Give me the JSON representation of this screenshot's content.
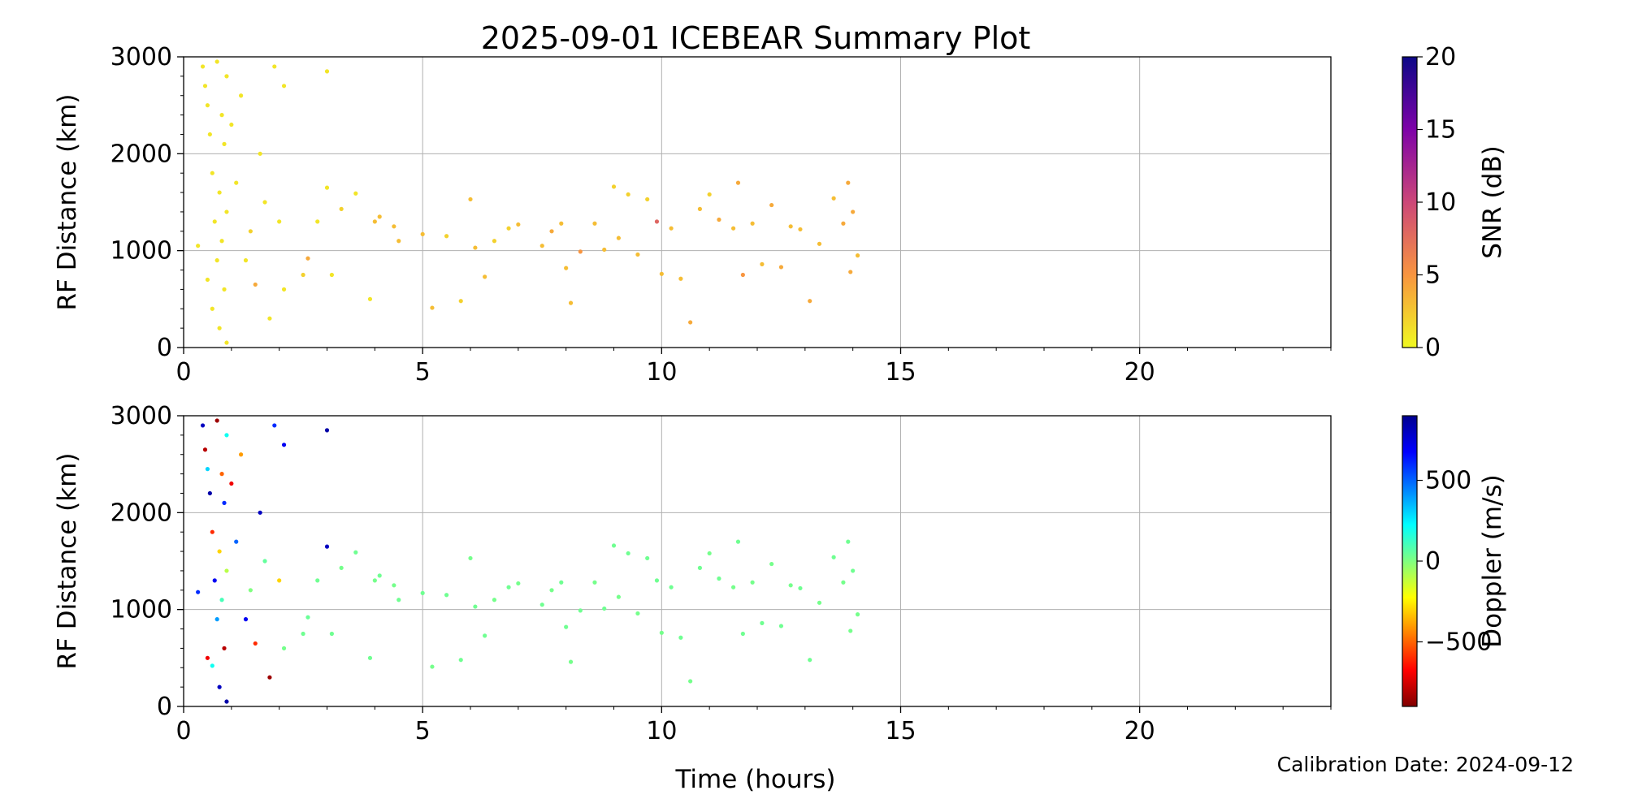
{
  "figure": {
    "title": "2025-09-01 ICEBEAR Summary Plot",
    "xlabel": "Time (hours)",
    "footnote": "Calibration Date: 2024-09-12"
  },
  "chart_data": [
    {
      "type": "scatter",
      "name": "snr-panel",
      "xlabel": "",
      "ylabel": "RF Distance (km)",
      "xlim": [
        0,
        24
      ],
      "ylim": [
        0,
        3000
      ],
      "xticks": [
        0,
        5,
        10,
        15,
        20
      ],
      "yticks": [
        0,
        1000,
        2000,
        3000
      ],
      "grid": true,
      "color_by": "snr",
      "colorbar": {
        "label": "SNR (dB)",
        "colormap": "plasma_r",
        "range": [
          0,
          20
        ],
        "ticks": [
          0,
          5,
          10,
          15,
          20
        ]
      },
      "points": [
        [
          0.3,
          1050,
          1
        ],
        [
          0.4,
          2900,
          1
        ],
        [
          0.45,
          2700,
          1
        ],
        [
          0.5,
          2500,
          1
        ],
        [
          0.5,
          700,
          1
        ],
        [
          0.55,
          2200,
          1
        ],
        [
          0.6,
          1800,
          1
        ],
        [
          0.6,
          400,
          1
        ],
        [
          0.65,
          1300,
          1
        ],
        [
          0.7,
          2950,
          1
        ],
        [
          0.7,
          900,
          1
        ],
        [
          0.75,
          1600,
          1
        ],
        [
          0.75,
          200,
          1
        ],
        [
          0.8,
          2400,
          1
        ],
        [
          0.8,
          1100,
          1
        ],
        [
          0.85,
          2100,
          1
        ],
        [
          0.85,
          600,
          1
        ],
        [
          0.9,
          2800,
          1
        ],
        [
          0.9,
          1400,
          1
        ],
        [
          0.9,
          50,
          1
        ],
        [
          1.0,
          2300,
          1
        ],
        [
          1.1,
          1700,
          1
        ],
        [
          1.2,
          2600,
          1
        ],
        [
          1.3,
          900,
          1
        ],
        [
          1.4,
          1200,
          2
        ],
        [
          1.5,
          650,
          4
        ],
        [
          1.6,
          2000,
          1
        ],
        [
          1.7,
          1500,
          1
        ],
        [
          1.8,
          300,
          1
        ],
        [
          1.9,
          2900,
          1
        ],
        [
          2.0,
          1300,
          1
        ],
        [
          2.1,
          2700,
          1
        ],
        [
          2.1,
          600,
          1
        ],
        [
          2.5,
          750,
          2
        ],
        [
          2.6,
          920,
          4
        ],
        [
          2.8,
          1300,
          1
        ],
        [
          3.0,
          1650,
          1
        ],
        [
          3.0,
          2850,
          1
        ],
        [
          3.1,
          750,
          1
        ],
        [
          3.3,
          1430,
          2
        ],
        [
          3.6,
          1590,
          1
        ],
        [
          3.9,
          500,
          1
        ],
        [
          4.0,
          1300,
          3
        ],
        [
          4.1,
          1350,
          3
        ],
        [
          4.4,
          1250,
          3
        ],
        [
          4.5,
          1100,
          3
        ],
        [
          5.0,
          1170,
          3
        ],
        [
          5.2,
          410,
          3
        ],
        [
          5.5,
          1150,
          2
        ],
        [
          5.8,
          480,
          2
        ],
        [
          6.0,
          1530,
          3
        ],
        [
          6.1,
          1030,
          3
        ],
        [
          6.3,
          730,
          3
        ],
        [
          6.5,
          1100,
          2
        ],
        [
          6.8,
          1230,
          2
        ],
        [
          7.0,
          1270,
          3
        ],
        [
          7.5,
          1050,
          3
        ],
        [
          7.7,
          1200,
          4
        ],
        [
          7.9,
          1280,
          3
        ],
        [
          8.0,
          820,
          3
        ],
        [
          8.1,
          460,
          3
        ],
        [
          8.3,
          990,
          5
        ],
        [
          8.6,
          1280,
          3
        ],
        [
          8.8,
          1010,
          3
        ],
        [
          9.0,
          1660,
          2
        ],
        [
          9.1,
          1130,
          3
        ],
        [
          9.3,
          1580,
          2
        ],
        [
          9.5,
          960,
          3
        ],
        [
          9.7,
          1530,
          2
        ],
        [
          9.9,
          1300,
          8
        ],
        [
          10.0,
          760,
          3
        ],
        [
          10.2,
          1230,
          3
        ],
        [
          10.4,
          710,
          3
        ],
        [
          10.6,
          260,
          4
        ],
        [
          10.8,
          1430,
          3
        ],
        [
          11.0,
          1580,
          2
        ],
        [
          11.2,
          1320,
          4
        ],
        [
          11.5,
          1230,
          3
        ],
        [
          11.6,
          1700,
          4
        ],
        [
          11.7,
          750,
          5
        ],
        [
          11.9,
          1280,
          3
        ],
        [
          12.1,
          860,
          3
        ],
        [
          12.3,
          1470,
          4
        ],
        [
          12.5,
          830,
          4
        ],
        [
          12.7,
          1250,
          3
        ],
        [
          12.9,
          1220,
          3
        ],
        [
          13.1,
          480,
          4
        ],
        [
          13.3,
          1070,
          3
        ],
        [
          13.6,
          1540,
          3
        ],
        [
          13.8,
          1280,
          4
        ],
        [
          13.9,
          1700,
          4
        ],
        [
          13.95,
          780,
          4
        ],
        [
          14.0,
          1400,
          4
        ],
        [
          14.1,
          950,
          3
        ]
      ]
    },
    {
      "type": "scatter",
      "name": "doppler-panel",
      "xlabel": "Time (hours)",
      "ylabel": "RF Distance (km)",
      "xlim": [
        0,
        24
      ],
      "ylim": [
        0,
        3000
      ],
      "xticks": [
        0,
        5,
        10,
        15,
        20
      ],
      "yticks": [
        0,
        1000,
        2000,
        3000
      ],
      "grid": true,
      "color_by": "doppler",
      "colorbar": {
        "label": "Doppler (m/s)",
        "colormap": "jet_r",
        "range": [
          -900,
          900
        ],
        "ticks": [
          -500,
          0,
          500
        ],
        "tick_labels": [
          "−500",
          "0",
          "500"
        ]
      },
      "points": [
        [
          0.3,
          1180,
          600
        ],
        [
          0.4,
          2900,
          800
        ],
        [
          0.45,
          2650,
          -800
        ],
        [
          0.5,
          2450,
          300
        ],
        [
          0.5,
          500,
          -700
        ],
        [
          0.55,
          2200,
          850
        ],
        [
          0.6,
          1800,
          -600
        ],
        [
          0.6,
          420,
          200
        ],
        [
          0.65,
          1300,
          700
        ],
        [
          0.7,
          2950,
          -850
        ],
        [
          0.7,
          900,
          400
        ],
        [
          0.75,
          1600,
          -300
        ],
        [
          0.75,
          200,
          800
        ],
        [
          0.8,
          2400,
          -500
        ],
        [
          0.8,
          1100,
          100
        ],
        [
          0.85,
          2100,
          600
        ],
        [
          0.85,
          600,
          -800
        ],
        [
          0.9,
          2800,
          200
        ],
        [
          0.9,
          1400,
          -100
        ],
        [
          0.9,
          50,
          850
        ],
        [
          1.0,
          2300,
          -700
        ],
        [
          1.1,
          1700,
          500
        ],
        [
          1.2,
          2600,
          -400
        ],
        [
          1.3,
          900,
          700
        ],
        [
          1.4,
          1200,
          0
        ],
        [
          1.5,
          650,
          -600
        ],
        [
          1.6,
          2000,
          800
        ],
        [
          1.7,
          1500,
          50
        ],
        [
          1.8,
          300,
          -850
        ],
        [
          1.9,
          2900,
          600
        ],
        [
          2.0,
          1300,
          -300
        ],
        [
          2.1,
          2700,
          700
        ],
        [
          2.1,
          600,
          20
        ],
        [
          2.5,
          750,
          30
        ],
        [
          2.6,
          920,
          40
        ],
        [
          2.8,
          1300,
          30
        ],
        [
          3.0,
          1650,
          800
        ],
        [
          3.0,
          2850,
          850
        ],
        [
          3.1,
          750,
          30
        ],
        [
          3.3,
          1430,
          20
        ],
        [
          3.6,
          1590,
          30
        ],
        [
          3.9,
          500,
          30
        ],
        [
          4.0,
          1300,
          20
        ],
        [
          4.1,
          1350,
          30
        ],
        [
          4.4,
          1250,
          20
        ],
        [
          4.5,
          1100,
          30
        ],
        [
          5.0,
          1170,
          30
        ],
        [
          5.2,
          410,
          20
        ],
        [
          5.5,
          1150,
          30
        ],
        [
          5.8,
          480,
          30
        ],
        [
          6.0,
          1530,
          20
        ],
        [
          6.1,
          1030,
          30
        ],
        [
          6.3,
          730,
          30
        ],
        [
          6.5,
          1100,
          20
        ],
        [
          6.8,
          1230,
          30
        ],
        [
          7.0,
          1270,
          20
        ],
        [
          7.5,
          1050,
          30
        ],
        [
          7.7,
          1200,
          20
        ],
        [
          7.9,
          1280,
          30
        ],
        [
          8.0,
          820,
          30
        ],
        [
          8.1,
          460,
          20
        ],
        [
          8.3,
          990,
          30
        ],
        [
          8.6,
          1280,
          20
        ],
        [
          8.8,
          1010,
          30
        ],
        [
          9.0,
          1660,
          30
        ],
        [
          9.1,
          1130,
          20
        ],
        [
          9.3,
          1580,
          30
        ],
        [
          9.5,
          960,
          20
        ],
        [
          9.7,
          1530,
          30
        ],
        [
          9.9,
          1300,
          30
        ],
        [
          10.0,
          760,
          20
        ],
        [
          10.2,
          1230,
          30
        ],
        [
          10.4,
          710,
          30
        ],
        [
          10.6,
          260,
          20
        ],
        [
          10.8,
          1430,
          30
        ],
        [
          11.0,
          1580,
          20
        ],
        [
          11.2,
          1320,
          30
        ],
        [
          11.5,
          1230,
          20
        ],
        [
          11.6,
          1700,
          30
        ],
        [
          11.7,
          750,
          30
        ],
        [
          11.9,
          1280,
          20
        ],
        [
          12.1,
          860,
          30
        ],
        [
          12.3,
          1470,
          20
        ],
        [
          12.5,
          830,
          30
        ],
        [
          12.7,
          1250,
          20
        ],
        [
          12.9,
          1220,
          30
        ],
        [
          13.1,
          480,
          30
        ],
        [
          13.3,
          1070,
          20
        ],
        [
          13.6,
          1540,
          30
        ],
        [
          13.8,
          1280,
          20
        ],
        [
          13.9,
          1700,
          30
        ],
        [
          13.95,
          780,
          20
        ],
        [
          14.0,
          1400,
          30
        ],
        [
          14.1,
          950,
          20
        ]
      ]
    }
  ]
}
